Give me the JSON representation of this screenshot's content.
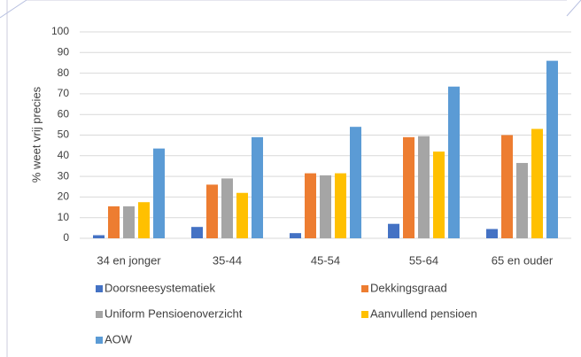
{
  "chart_data": {
    "type": "bar",
    "ylabel": "% weet vrij precies",
    "categories": [
      "34 en jonger",
      "35-44",
      "45-54",
      "55-64",
      "65 en ouder"
    ],
    "series": [
      {
        "name": "Doorsneesystematiek",
        "color": "#4472c4",
        "values": [
          1.5,
          5.5,
          2.5,
          7,
          4.5
        ]
      },
      {
        "name": "Dekkingsgraad",
        "color": "#ed7d31",
        "values": [
          15.5,
          26,
          31.5,
          49,
          50
        ]
      },
      {
        "name": "Uniform Pensioenoverzicht",
        "color": "#a5a5a5",
        "values": [
          15.5,
          29,
          30.5,
          49.5,
          36.5
        ]
      },
      {
        "name": "Aanvullend pensioen",
        "color": "#ffc000",
        "values": [
          17.5,
          22,
          31.5,
          42,
          53
        ]
      },
      {
        "name": "AOW",
        "color": "#5b9bd5",
        "values": [
          43.5,
          49,
          54,
          73.5,
          86
        ]
      }
    ],
    "ylim": [
      0,
      100
    ],
    "yticks": [
      0,
      10,
      20,
      30,
      40,
      50,
      60,
      70,
      80,
      90,
      100
    ],
    "grid": true,
    "legend": "bottom"
  }
}
